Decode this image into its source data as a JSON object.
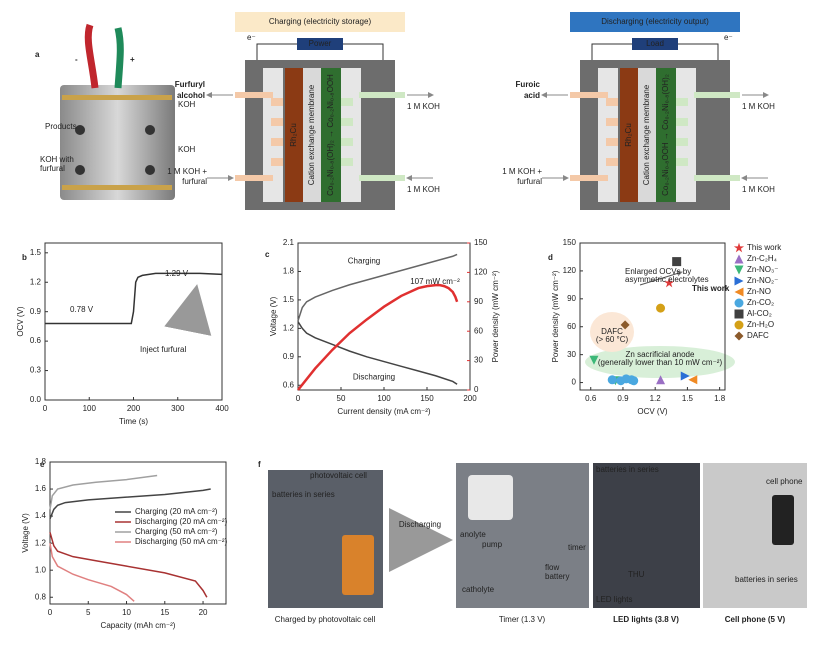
{
  "panel_labels": [
    "a",
    "b",
    "c",
    "d",
    "e",
    "f"
  ],
  "photo_a": {
    "minus": "-",
    "plus": "+",
    "products": "Products",
    "koh_furfural": [
      "KOH with",
      "furfural"
    ],
    "koh_top": "KOH",
    "koh_bottom": "KOH"
  },
  "diagrams": [
    {
      "title": "Charging (electricity storage)",
      "source": "Power",
      "electron": "e⁻",
      "product": [
        "Furfuryl",
        "alcohol"
      ],
      "left_in": [
        "1 M KOH +",
        "furfural"
      ],
      "right_out": "1 M KOH",
      "right_in": "1 M KOH",
      "anode": "Rh₂Cu",
      "membrane": "Cation exchange membrane",
      "cathode": "Co₀.₂Ni₀.₈(OH)₂ → Co₀.₂Ni₀.₈OOH"
    },
    {
      "title": "Discharging (electricity output)",
      "source": "Load",
      "electron": "e⁻",
      "product": [
        "Furoic",
        "acid"
      ],
      "left_in": [
        "1 M KOH +",
        "furfural"
      ],
      "right_out": "1 M KOH",
      "right_in": "1 M KOH",
      "anode": "Rh₂Cu",
      "membrane": "Cation exchange membrane",
      "cathode": "Co₀.₂Ni₀.₈OOH → Co₀.₂Ni₀.₈(OH)₂"
    }
  ],
  "chart_data": [
    {
      "type": "line",
      "xlabel": "Time (s)",
      "ylabel": "OCV (V)",
      "xlim": [
        0,
        400
      ],
      "xticks": [
        0,
        100,
        200,
        300,
        400
      ],
      "ylim": [
        0,
        1.6
      ],
      "yticks": [
        {
          "value": 0,
          "label": "0.0"
        },
        {
          "value": 0.3,
          "label": "0.3"
        },
        {
          "value": 0.6,
          "label": "0.6"
        },
        {
          "value": 0.9,
          "label": "0.9"
        },
        {
          "value": 1.2,
          "label": "1.2"
        },
        {
          "value": 1.5,
          "label": "1.5"
        }
      ],
      "series": [
        {
          "color": "#333333",
          "x": [
            0,
            50,
            100,
            150,
            195,
            200,
            205,
            210,
            220,
            250,
            300,
            350,
            400
          ],
          "values": [
            0.78,
            0.78,
            0.78,
            0.78,
            0.78,
            0.9,
            1.2,
            1.25,
            1.27,
            1.29,
            1.29,
            1.29,
            1.28
          ]
        }
      ],
      "annotations": [
        "0.78 V",
        "1.29 V",
        "Inject furfural"
      ]
    },
    {
      "type": "line",
      "xlabel": "Current density (mA cm⁻²)",
      "ylabel": "Voltage (V)",
      "y2label": "Power density (mW cm⁻²)",
      "legend": "inline",
      "xlim": [
        0,
        200
      ],
      "xticks": [
        0,
        50,
        100,
        150,
        200
      ],
      "ylim": [
        0.55,
        2.1
      ],
      "yticks": [
        {
          "value": 0.6,
          "label": "0.6"
        },
        {
          "value": 0.9,
          "label": "0.9"
        },
        {
          "value": 1.2,
          "label": "1.2"
        },
        {
          "value": 1.5,
          "label": "1.5"
        },
        {
          "value": 1.8,
          "label": "1.8"
        },
        {
          "value": 2.1,
          "label": "2.1"
        }
      ],
      "y2lim": [
        0,
        150
      ],
      "y2ticks": [
        0,
        30,
        60,
        90,
        120,
        150
      ],
      "y2color": "#e03030",
      "series": [
        {
          "name": "Charging",
          "color": "#666666",
          "x": [
            0,
            5,
            10,
            20,
            40,
            60,
            80,
            100,
            120,
            140,
            160,
            180,
            185
          ],
          "values": [
            1.28,
            1.42,
            1.48,
            1.53,
            1.6,
            1.66,
            1.71,
            1.76,
            1.81,
            1.86,
            1.91,
            1.96,
            1.98
          ]
        },
        {
          "name": "Discharging",
          "color": "#444444",
          "x": [
            0,
            5,
            10,
            20,
            40,
            60,
            80,
            100,
            120,
            140,
            160,
            180,
            185
          ],
          "values": [
            1.27,
            1.2,
            1.15,
            1.1,
            1.03,
            0.96,
            0.9,
            0.85,
            0.8,
            0.75,
            0.7,
            0.64,
            0.61
          ]
        },
        {
          "color": "#e03030",
          "axis": "y2",
          "x": [
            0,
            20,
            40,
            60,
            80,
            100,
            120,
            140,
            150,
            160,
            165,
            170,
            175,
            180,
            183,
            185
          ],
          "values": [
            0,
            22,
            41,
            58,
            72,
            85,
            96,
            104,
            106,
            107,
            107,
            106,
            104,
            100,
            95,
            90
          ]
        }
      ],
      "annotations": [
        "107 mW cm⁻²"
      ]
    },
    {
      "type": "scatter",
      "xlabel": "OCV (V)",
      "ylabel": "Power density (mW cm⁻²)",
      "legend": "outside right",
      "xlim": [
        0.5,
        1.85
      ],
      "xticks": [
        {
          "value": 0.6,
          "label": "0.6"
        },
        {
          "value": 0.9,
          "label": "0.9"
        },
        {
          "value": 1.2,
          "label": "1.2"
        },
        {
          "value": 1.5,
          "label": "1.5"
        },
        {
          "value": 1.8,
          "label": "1.8"
        }
      ],
      "ylim": [
        -8,
        150
      ],
      "yticks": [
        0,
        30,
        60,
        90,
        120,
        150
      ],
      "series": [
        {
          "name": "This work",
          "color": "#e03a3a",
          "marker": "star",
          "x": [
            1.33
          ],
          "values": [
            107
          ]
        },
        {
          "name": "Zn-C₂H₄",
          "color": "#9a6fc4",
          "marker": "triangle-up",
          "x": [
            1.25
          ],
          "values": [
            3
          ]
        },
        {
          "name": "Zn-NO₃⁻",
          "color": "#3cb878",
          "marker": "triangle-down",
          "x": [
            0.63,
            0.83
          ],
          "values": [
            24,
            2
          ]
        },
        {
          "name": "Zn-NO₂⁻",
          "color": "#2b6fd6",
          "marker": "triangle-right",
          "x": [
            1.48
          ],
          "values": [
            7
          ]
        },
        {
          "name": "Zn-NO",
          "color": "#f08a24",
          "marker": "triangle-left",
          "x": [
            1.55
          ],
          "values": [
            3
          ]
        },
        {
          "name": "Zn-CO₂",
          "color": "#4aa8e0",
          "marker": "circle",
          "x": [
            0.8,
            0.88,
            0.93,
            0.98,
            1.0
          ],
          "values": [
            3,
            2,
            4,
            3,
            2
          ]
        },
        {
          "name": "Al-CO₂",
          "color": "#404040",
          "marker": "square",
          "x": [
            1.4
          ],
          "values": [
            130
          ]
        },
        {
          "name": "Zn-H₂O",
          "color": "#d4a017",
          "marker": "circle",
          "x": [
            1.25
          ],
          "values": [
            80
          ]
        },
        {
          "name": "DAFC",
          "color": "#8b5a2b",
          "marker": "diamond",
          "x": [
            0.92
          ],
          "values": [
            62
          ]
        }
      ],
      "annotations": [
        "Enlarged OCVs by",
        "asymmetric electrolytes",
        "This work",
        "DAFC",
        "(> 60 °C)",
        "Zn sacrificial anode",
        "(generally lower than 10 mW cm⁻²)"
      ]
    },
    {
      "type": "line",
      "xlabel": "Capacity (mAh cm⁻²)",
      "ylabel": "Voltage (V)",
      "legend": "right",
      "xlim": [
        0,
        23
      ],
      "xticks": [
        0,
        5,
        10,
        15,
        20
      ],
      "ylim": [
        0.75,
        1.8
      ],
      "yticks": [
        {
          "value": 0.8,
          "label": "0.8"
        },
        {
          "value": 1.0,
          "label": "1.0"
        },
        {
          "value": 1.2,
          "label": "1.2"
        },
        {
          "value": 1.4,
          "label": "1.4"
        },
        {
          "value": 1.6,
          "label": "1.6"
        },
        {
          "value": 1.8,
          "label": "1.8"
        }
      ],
      "series": [
        {
          "name": "Charging  (20 mA cm⁻²)",
          "color": "#444444",
          "x": [
            0,
            0.5,
            1,
            2,
            5,
            10,
            15,
            20,
            21
          ],
          "values": [
            1.38,
            1.45,
            1.48,
            1.5,
            1.52,
            1.54,
            1.56,
            1.59,
            1.6
          ]
        },
        {
          "name": "Discharging (20 mA cm⁻²)",
          "color": "#a83232",
          "x": [
            0,
            0.5,
            1,
            3,
            6,
            10,
            15,
            19,
            20,
            20.5
          ],
          "values": [
            1.28,
            1.18,
            1.14,
            1.1,
            1.07,
            1.03,
            0.98,
            0.92,
            0.85,
            0.8
          ]
        },
        {
          "name": "Charging  (50 mA cm⁻²)",
          "color": "#a0a0a0",
          "x": [
            0,
            0.3,
            1,
            3,
            6,
            10,
            14
          ],
          "values": [
            1.45,
            1.55,
            1.6,
            1.63,
            1.65,
            1.67,
            1.7
          ]
        },
        {
          "name": "Discharging (50 mA cm⁻²)",
          "color": "#e08080",
          "x": [
            0,
            0.3,
            1,
            3,
            5,
            8,
            10,
            11
          ],
          "values": [
            1.2,
            1.1,
            1.03,
            0.97,
            0.93,
            0.88,
            0.82,
            0.77
          ]
        }
      ]
    }
  ],
  "photo_f": {
    "pv_cell": "photovoltaic cell",
    "batteries_1": "batteries in series",
    "caption_1": "Charged by photovoltaic cell",
    "arrow": "Discharging",
    "anolyte": "anolyte",
    "pump": "pump",
    "catholyte": "catholyte",
    "flow_battery": [
      "flow",
      "battery"
    ],
    "timer": "timer",
    "caption_2": "Timer (1.3 V)",
    "batteries_3": "batteries in series",
    "led": "LED lights",
    "thu": "THU",
    "caption_3": "LED lights (3.8 V)",
    "cell_phone": "cell phone",
    "batteries_4": "batteries in series",
    "caption_4": "Cell phone (5 V)"
  }
}
